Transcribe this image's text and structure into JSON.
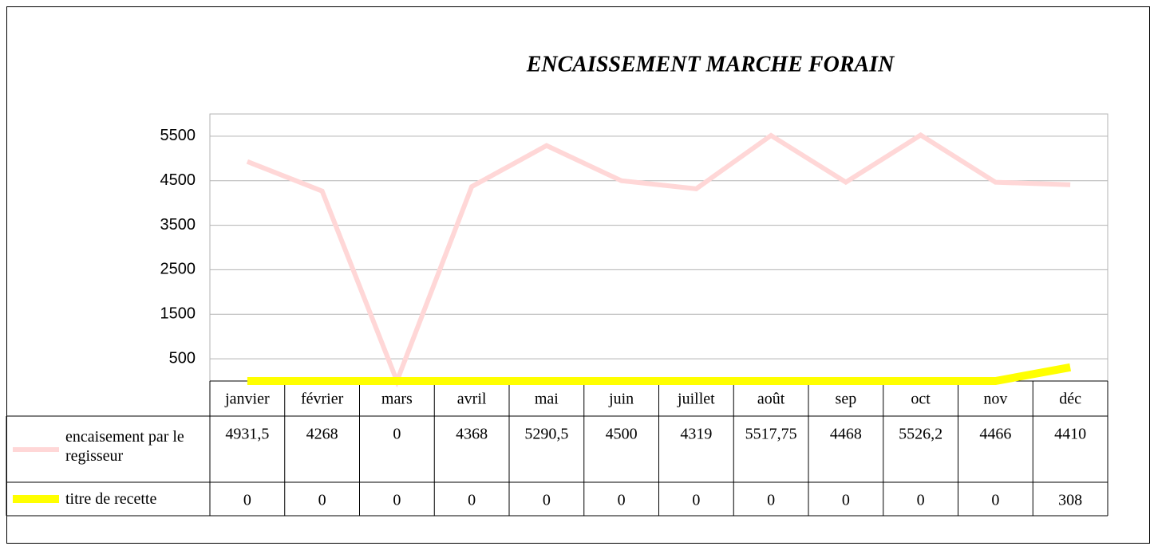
{
  "chart_data": {
    "type": "line",
    "title": "ENCAISSEMENT MARCHE FORAIN",
    "categories": [
      "janvier",
      "février",
      "mars",
      "avril",
      "mai",
      "juin",
      "juillet",
      "août",
      "sep",
      "oct",
      "nov",
      "déc"
    ],
    "series": [
      {
        "name": "encaisement par le regisseur",
        "color": "#ffd7d7",
        "values": [
          4931.5,
          4268,
          0,
          4368,
          5290.5,
          4500,
          4319,
          5517.75,
          4468,
          5526.2,
          4466,
          4410
        ],
        "value_labels": [
          "4931,5",
          "4268",
          "0",
          "4368",
          "5290,5",
          "4500",
          "4319",
          "5517,75",
          "4468",
          "5526,2",
          "4466",
          "4410"
        ]
      },
      {
        "name": "titre de recette",
        "color": "#ffff00",
        "values": [
          0,
          0,
          0,
          0,
          0,
          0,
          0,
          0,
          0,
          0,
          0,
          308
        ],
        "value_labels": [
          "0",
          "0",
          "0",
          "0",
          "0",
          "0",
          "0",
          "0",
          "0",
          "0",
          "0",
          "308"
        ]
      }
    ],
    "ylim": [
      0,
      6000
    ],
    "yticks": [
      500,
      1500,
      2500,
      3500,
      4500,
      5500
    ],
    "grid": true
  }
}
